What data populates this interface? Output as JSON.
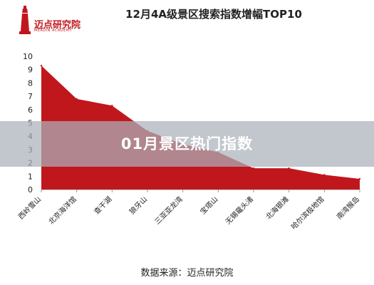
{
  "logo": {
    "name": "迈点研究院",
    "subtitle": "MEADIN ACADEMY"
  },
  "overlay_text": "01月景区热门指数",
  "source": "数据来源：迈点研究院",
  "colors": {
    "area_fill": "#c0171d",
    "axis": "#999999",
    "text": "#222222"
  },
  "chart_data": {
    "type": "area",
    "title": "12月4A级景区搜索指数增幅TOP10",
    "categories": [
      "西岭雪山",
      "北京海洋馆",
      "查干湖",
      "狼牙山",
      "三亚亚龙湾",
      "宝塔山",
      "无锡鼋头渚",
      "北海银滩",
      "哈尔滨极地馆",
      "南湾猴岛"
    ],
    "values": [
      9.3,
      6.8,
      6.3,
      4.4,
      3.4,
      2.8,
      1.6,
      1.6,
      1.1,
      0.8
    ],
    "yticks": [
      0,
      1,
      2,
      3,
      4,
      5,
      6,
      7,
      8,
      9,
      10
    ],
    "ylim": [
      0,
      10
    ],
    "grid": false,
    "xlabel": "",
    "ylabel": ""
  }
}
